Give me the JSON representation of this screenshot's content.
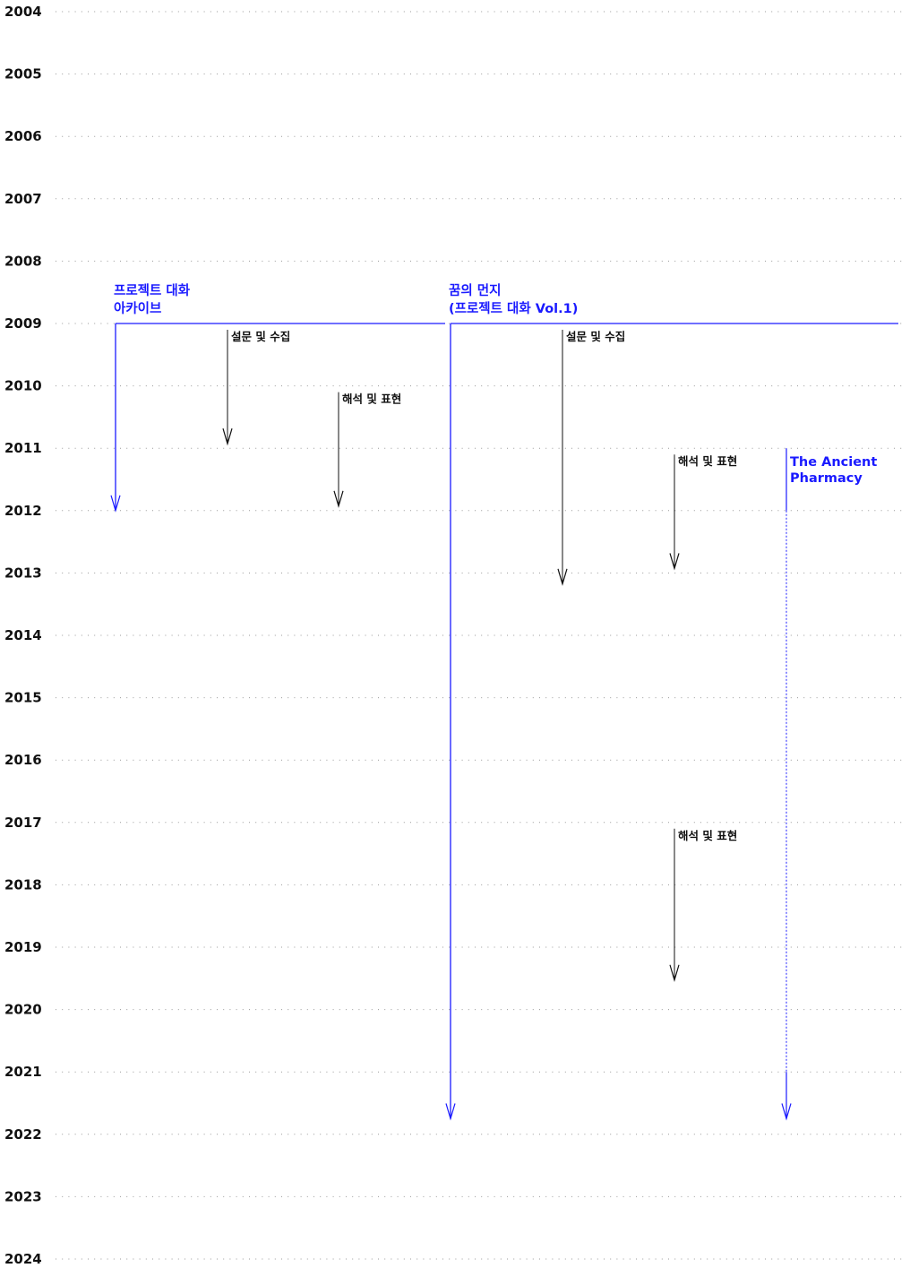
{
  "colors": {
    "project": "#1a1aff",
    "task": "#111111",
    "grid": "#9a9a9a",
    "year_text": "#111111"
  },
  "years": [
    "2004",
    "2005",
    "2006",
    "2007",
    "2008",
    "2009",
    "2010",
    "2011",
    "2012",
    "2013",
    "2014",
    "2015",
    "2016",
    "2017",
    "2018",
    "2019",
    "2020",
    "2021",
    "2022",
    "2023",
    "2024"
  ],
  "projects": [
    {
      "id": "archive",
      "title_lines": [
        "프로젝트 대화",
        "아카이브"
      ],
      "start_year": 2009,
      "end_year": 2012
    },
    {
      "id": "dust",
      "title_lines": [
        "꿈의 먼지",
        "(프로젝트 대화 Vol.1)"
      ],
      "start_year": 2009,
      "end_year": 2021.75
    },
    {
      "id": "pharmacy",
      "title_lines": [
        "The Ancient",
        "Pharmacy"
      ],
      "start_year": 2011,
      "end_year": 2021.75,
      "solid_until_year": 2012,
      "dashed_until_year": 2021,
      "style": "dashed-middle"
    }
  ],
  "tasks": [
    {
      "project": "archive",
      "label": "설문 및 수집",
      "start_year": 2009,
      "end_year": 2011
    },
    {
      "project": "archive",
      "label": "해석 및 표현",
      "start_year": 2010,
      "end_year": 2012
    },
    {
      "project": "dust",
      "label": "설문 및 수집",
      "start_year": 2009,
      "end_year": 2013.25
    },
    {
      "project": "dust",
      "label": "해석 및 표현",
      "start_year": 2011,
      "end_year": 2013
    },
    {
      "project": "dust",
      "label": "해석 및 표현",
      "start_year": 2017,
      "end_year": 2019.6
    }
  ]
}
